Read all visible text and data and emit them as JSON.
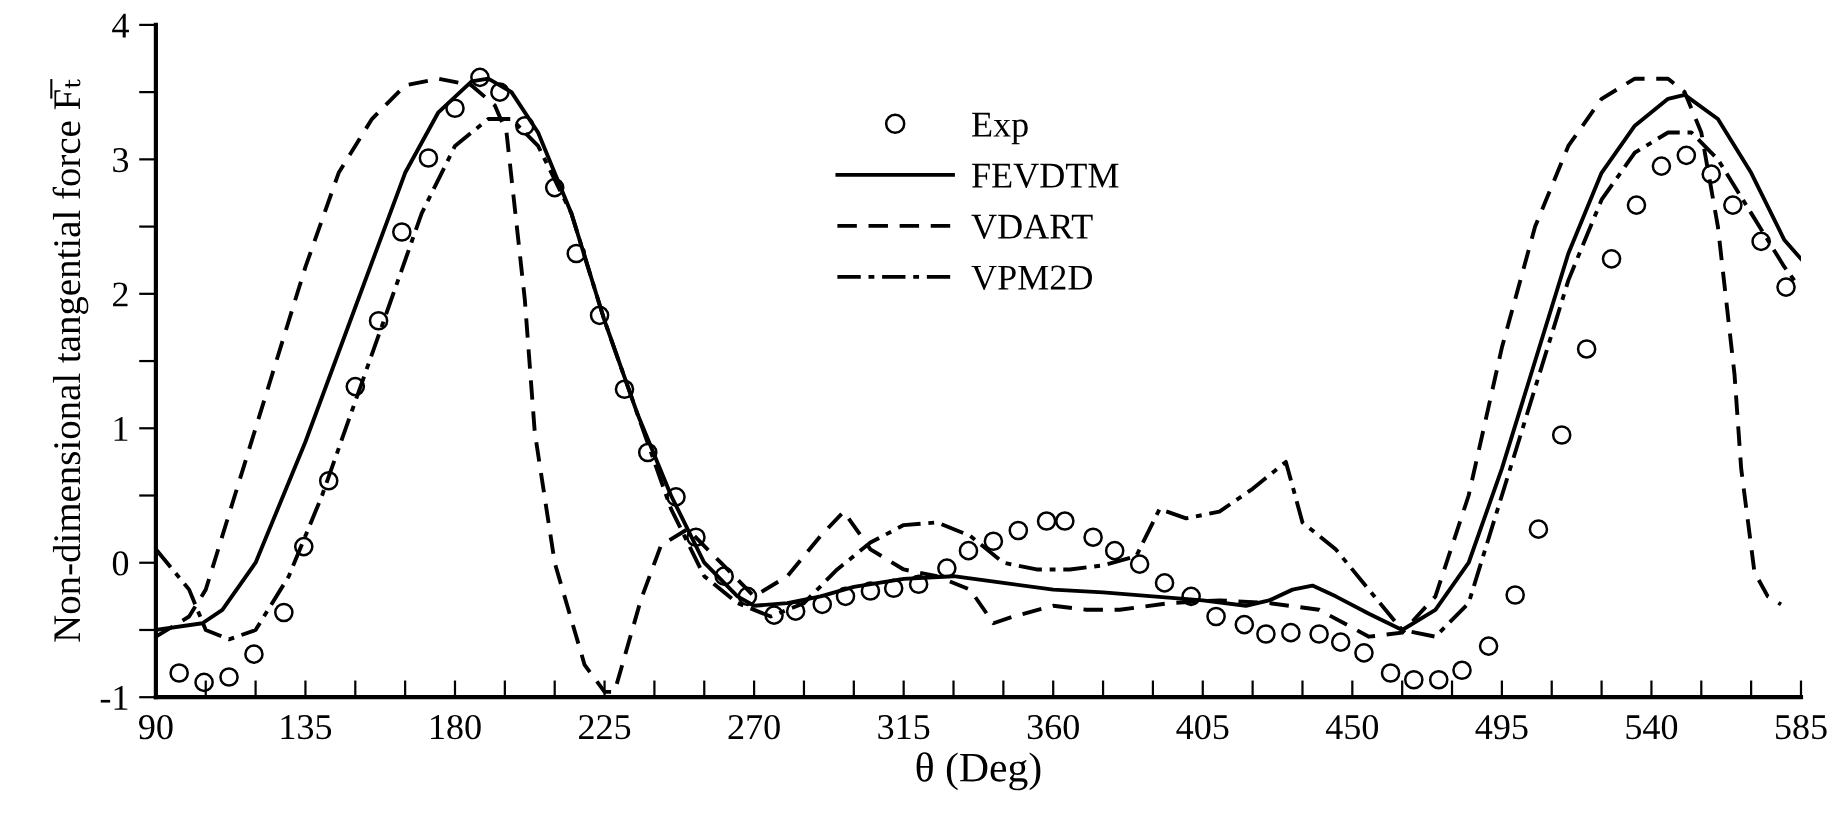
{
  "chart_data": {
    "type": "line",
    "xlabel": "θ (Deg)",
    "ylabel": "Non-dimensional tangential force F̅ₜ",
    "xlim": [
      90,
      585
    ],
    "ylim": [
      -1,
      4
    ],
    "xticks": [
      90,
      {
        "value": 105,
        "label": null
      },
      {
        "value": 120,
        "label": null
      },
      135,
      {
        "value": 150,
        "label": null
      },
      {
        "value": 165,
        "label": null
      },
      180,
      {
        "value": 195,
        "label": null
      },
      {
        "value": 210,
        "label": null
      },
      225,
      {
        "value": 240,
        "label": null
      },
      {
        "value": 255,
        "label": null
      },
      270,
      {
        "value": 285,
        "label": null
      },
      {
        "value": 300,
        "label": null
      },
      315,
      {
        "value": 330,
        "label": null
      },
      {
        "value": 345,
        "label": null
      },
      360,
      {
        "value": 375,
        "label": null
      },
      {
        "value": 390,
        "label": null
      },
      405,
      {
        "value": 420,
        "label": null
      },
      {
        "value": 435,
        "label": null
      },
      450,
      {
        "value": 465,
        "label": null
      },
      {
        "value": 480,
        "label": null
      },
      495,
      {
        "value": 510,
        "label": null
      },
      {
        "value": 525,
        "label": null
      },
      540,
      {
        "value": 555,
        "label": null
      },
      {
        "value": 570,
        "label": null
      },
      585
    ],
    "yticks": [
      -1,
      {
        "value": -0.5,
        "label": null
      },
      0,
      {
        "value": 0.5,
        "label": null
      },
      1,
      {
        "value": 1.5,
        "label": null
      },
      2,
      {
        "value": 2.5,
        "label": null
      },
      3,
      {
        "value": 3.5,
        "label": null
      },
      4
    ],
    "grid": false,
    "legend": "top",
    "series": [
      {
        "name": "Exp",
        "type": "scatter",
        "marker": "circle",
        "color": "#000000",
        "x": [
          97,
          104.5,
          112,
          119.5,
          128.5,
          134.5,
          142,
          150,
          157,
          164,
          172,
          180,
          187.5,
          193.5,
          201,
          210,
          216.5,
          223.5,
          231,
          238,
          246.5,
          252.5,
          261,
          268,
          276,
          282.5,
          290.5,
          297.5,
          305,
          312,
          319.5,
          328,
          334.5,
          342,
          349.5,
          358,
          363.5,
          372,
          378.5,
          386,
          393.5,
          401.5,
          409,
          417.5,
          424,
          431.5,
          440,
          446.5,
          453.5,
          461.5,
          468.5,
          476,
          483,
          491,
          499,
          506,
          513,
          520.5,
          528,
          535.5,
          543,
          550.5,
          558,
          564.5,
          573,
          580.5
        ],
        "values": [
          -0.82,
          -0.89,
          -0.85,
          -0.68,
          -0.37,
          0.12,
          0.61,
          1.31,
          1.8,
          2.46,
          3.01,
          3.38,
          3.61,
          3.5,
          3.25,
          2.79,
          2.3,
          1.84,
          1.29,
          0.82,
          0.49,
          0.19,
          -0.1,
          -0.25,
          -0.39,
          -0.36,
          -0.31,
          -0.25,
          -0.21,
          -0.19,
          -0.16,
          -0.04,
          0.09,
          0.16,
          0.24,
          0.31,
          0.31,
          0.19,
          0.09,
          -0.01,
          -0.15,
          -0.25,
          -0.4,
          -0.46,
          -0.53,
          -0.52,
          -0.53,
          -0.59,
          -0.67,
          -0.82,
          -0.87,
          -0.87,
          -0.8,
          -0.62,
          -0.24,
          0.25,
          0.95,
          1.59,
          2.26,
          2.66,
          2.95,
          3.03,
          2.89,
          2.66,
          2.39,
          2.05
        ]
      },
      {
        "name": "FEVDTM",
        "line_style": "solid",
        "color": "#000000",
        "x": [
          90,
          104,
          110,
          120,
          135,
          150,
          165,
          175,
          185,
          190,
          197,
          205,
          215,
          225,
          235,
          245,
          255,
          265,
          270,
          280,
          290,
          300,
          315,
          330,
          345,
          360,
          375,
          390,
          405,
          418,
          425,
          432,
          438,
          445,
          455,
          465,
          475,
          485,
          495,
          505,
          515,
          525,
          535,
          545,
          550,
          560,
          570,
          580,
          585
        ],
        "values": [
          -0.5,
          -0.45,
          -0.35,
          0.0,
          0.9,
          1.9,
          2.9,
          3.35,
          3.58,
          3.6,
          3.5,
          3.2,
          2.6,
          1.8,
          1.1,
          0.5,
          0.0,
          -0.25,
          -0.32,
          -0.3,
          -0.25,
          -0.18,
          -0.12,
          -0.1,
          -0.15,
          -0.2,
          -0.22,
          -0.25,
          -0.28,
          -0.32,
          -0.28,
          -0.2,
          -0.17,
          -0.25,
          -0.38,
          -0.5,
          -0.35,
          0.0,
          0.7,
          1.5,
          2.3,
          2.9,
          3.25,
          3.45,
          3.48,
          3.3,
          2.9,
          2.4,
          2.26
        ]
      },
      {
        "name": "VDART",
        "line_style": "dashed",
        "color": "#000000",
        "x": [
          90,
          100,
          105,
          115,
          125,
          135,
          145,
          155,
          165,
          175,
          185,
          192,
          195.5,
          201,
          204,
          210,
          219,
          225,
          228,
          236,
          242,
          250,
          260,
          270,
          280,
          290,
          297,
          305,
          315,
          325,
          335,
          342,
          348,
          360,
          370,
          380,
          395,
          410,
          425,
          440,
          455,
          465,
          475,
          485,
          495,
          505,
          515,
          525,
          535,
          545,
          550,
          555,
          560,
          565,
          567,
          571,
          575,
          579
        ],
        "values": [
          -0.55,
          -0.4,
          -0.2,
          0.6,
          1.4,
          2.2,
          2.9,
          3.3,
          3.55,
          3.6,
          3.55,
          3.4,
          3.2,
          1.96,
          0.97,
          0.0,
          -0.76,
          -0.96,
          -0.96,
          -0.27,
          0.13,
          0.25,
          0.0,
          -0.25,
          -0.1,
          0.2,
          0.38,
          0.1,
          -0.05,
          -0.1,
          -0.2,
          -0.45,
          -0.4,
          -0.32,
          -0.35,
          -0.35,
          -0.3,
          -0.28,
          -0.3,
          -0.35,
          -0.55,
          -0.52,
          -0.25,
          0.5,
          1.6,
          2.5,
          3.1,
          3.45,
          3.6,
          3.6,
          3.5,
          3.2,
          2.5,
          1.4,
          0.7,
          -0.07,
          -0.25,
          -0.31
        ]
      },
      {
        "name": "VPM2D",
        "line_style": "dashdot",
        "color": "#000000",
        "x": [
          90,
          100,
          105,
          112,
          120,
          130,
          140,
          150,
          160,
          170,
          180,
          190,
          197,
          205,
          215,
          225,
          235,
          245,
          255,
          265,
          275,
          285,
          295,
          305,
          315,
          325,
          335,
          345,
          355,
          365,
          375,
          385,
          392,
          400,
          410,
          420,
          430,
          435,
          445,
          455,
          465,
          475,
          485,
          495,
          505,
          515,
          525,
          535,
          545,
          552,
          560,
          570,
          580,
          583
        ],
        "values": [
          0.1,
          -0.2,
          -0.5,
          -0.57,
          -0.5,
          -0.1,
          0.5,
          1.2,
          1.9,
          2.6,
          3.1,
          3.3,
          3.3,
          3.1,
          2.6,
          1.8,
          1.1,
          0.4,
          -0.1,
          -0.3,
          -0.4,
          -0.3,
          -0.05,
          0.15,
          0.28,
          0.3,
          0.2,
          0.0,
          -0.05,
          -0.05,
          -0.02,
          0.05,
          0.4,
          0.33,
          0.38,
          0.55,
          0.75,
          0.3,
          0.1,
          -0.2,
          -0.5,
          -0.55,
          -0.3,
          0.5,
          1.3,
          2.1,
          2.7,
          3.05,
          3.2,
          3.2,
          3.0,
          2.6,
          2.2,
          2.1
        ]
      }
    ]
  }
}
